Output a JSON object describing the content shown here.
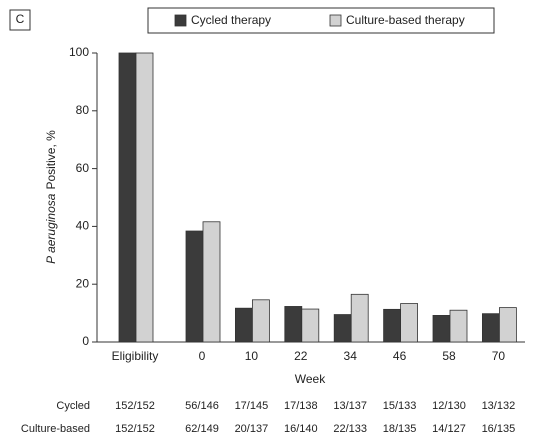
{
  "chart_data": {
    "type": "bar",
    "panel": "C",
    "ylabel": {
      "italic": "P aeruginosa",
      "text": "Positive, %"
    },
    "xlabel": "Week",
    "categories": [
      "Eligibility",
      "0",
      "10",
      "22",
      "34",
      "46",
      "58",
      "70"
    ],
    "series": [
      {
        "name": "Cycled therapy",
        "color": "#3b3b3b",
        "values": [
          100,
          38.4,
          11.7,
          12.3,
          9.5,
          11.3,
          9.2,
          9.8
        ]
      },
      {
        "name": "Culture-based therapy",
        "color": "#d2d2d2",
        "values": [
          100,
          41.6,
          14.6,
          11.4,
          16.5,
          13.3,
          11.0,
          11.9
        ]
      }
    ],
    "ylim": [
      0,
      100
    ],
    "yticks": [
      0,
      20,
      40,
      60,
      80,
      100
    ],
    "grid": false,
    "table": [
      {
        "label": "Cycled",
        "cells": [
          "152/152",
          "56/146",
          "17/145",
          "17/138",
          "13/137",
          "15/133",
          "12/130",
          "13/132"
        ]
      },
      {
        "label": "Culture-based",
        "cells": [
          "152/152",
          "62/149",
          "20/137",
          "16/140",
          "22/133",
          "18/135",
          "14/127",
          "16/135"
        ]
      }
    ]
  }
}
